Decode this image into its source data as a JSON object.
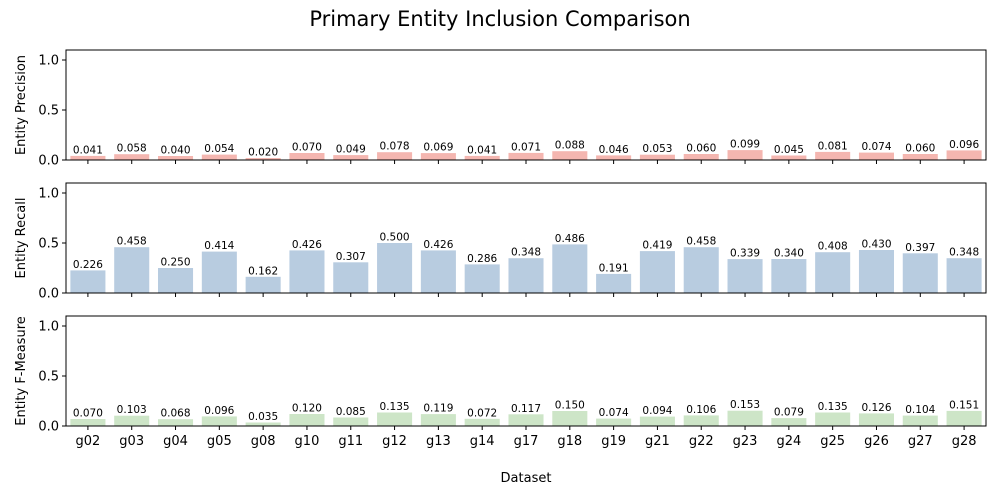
{
  "chart_data": {
    "type": "bar",
    "title": "Primary Entity Inclusion Comparison",
    "xlabel": "Dataset",
    "categories": [
      "g02",
      "g03",
      "g04",
      "g05",
      "g08",
      "g10",
      "g11",
      "g12",
      "g13",
      "g14",
      "g17",
      "g18",
      "g19",
      "g21",
      "g22",
      "g23",
      "g24",
      "g25",
      "g26",
      "g27",
      "g28"
    ],
    "ylim": [
      0,
      1.1
    ],
    "yticks": [
      "0.0",
      "0.5",
      "1.0"
    ],
    "grid": false,
    "legend": "none",
    "series": [
      {
        "ylabel": "Entity Precision",
        "color": "#f4b6b0",
        "values": [
          0.041,
          0.058,
          0.04,
          0.054,
          0.02,
          0.07,
          0.049,
          0.078,
          0.069,
          0.041,
          0.071,
          0.088,
          0.046,
          0.053,
          0.06,
          0.099,
          0.045,
          0.081,
          0.074,
          0.06,
          0.096
        ],
        "labels": [
          "0.041",
          "0.058",
          "0.040",
          "0.054",
          "0.020",
          "0.070",
          "0.049",
          "0.078",
          "0.069",
          "0.041",
          "0.071",
          "0.088",
          "0.046",
          "0.053",
          "0.060",
          "0.099",
          "0.045",
          "0.081",
          "0.074",
          "0.060",
          "0.096"
        ]
      },
      {
        "ylabel": "Entity Recall",
        "color": "#b8cce0",
        "values": [
          0.226,
          0.458,
          0.25,
          0.414,
          0.162,
          0.426,
          0.307,
          0.5,
          0.426,
          0.286,
          0.348,
          0.486,
          0.191,
          0.419,
          0.458,
          0.339,
          0.34,
          0.408,
          0.43,
          0.397,
          0.348
        ],
        "labels": [
          "0.226",
          "0.458",
          "0.250",
          "0.414",
          "0.162",
          "0.426",
          "0.307",
          "0.500",
          "0.426",
          "0.286",
          "0.348",
          "0.486",
          "0.191",
          "0.419",
          "0.458",
          "0.339",
          "0.340",
          "0.408",
          "0.430",
          "0.397",
          "0.348"
        ]
      },
      {
        "ylabel": "Entity F-Measure",
        "color": "#cde5c7",
        "values": [
          0.07,
          0.103,
          0.068,
          0.096,
          0.035,
          0.12,
          0.085,
          0.135,
          0.119,
          0.072,
          0.117,
          0.15,
          0.074,
          0.094,
          0.106,
          0.153,
          0.079,
          0.135,
          0.126,
          0.104,
          0.151
        ],
        "labels": [
          "0.070",
          "0.103",
          "0.068",
          "0.096",
          "0.035",
          "0.120",
          "0.085",
          "0.135",
          "0.119",
          "0.072",
          "0.117",
          "0.150",
          "0.074",
          "0.094",
          "0.106",
          "0.153",
          "0.079",
          "0.135",
          "0.126",
          "0.104",
          "0.151"
        ]
      }
    ]
  }
}
